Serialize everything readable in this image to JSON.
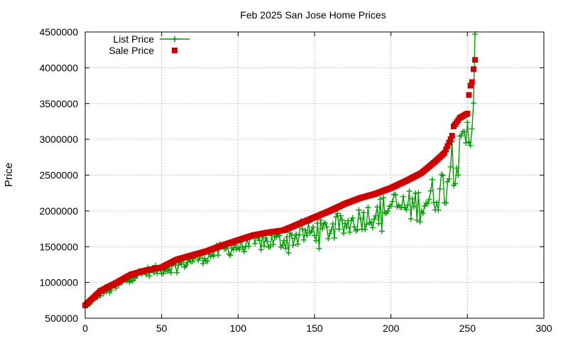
{
  "chart_data": {
    "type": "line",
    "title": "Feb 2025 San Jose Home Prices",
    "xlabel": "",
    "ylabel": "Price",
    "xlim": [
      0,
      300
    ],
    "ylim": [
      500000,
      4500000
    ],
    "xticks": [
      0,
      50,
      100,
      150,
      200,
      250,
      300
    ],
    "yticks": [
      500000,
      1000000,
      1500000,
      2000000,
      2500000,
      3000000,
      3500000,
      4000000,
      4500000
    ],
    "grid": true,
    "legend_position": "top-left",
    "series": [
      {
        "name": "List Price",
        "style": "line-with-plus-markers",
        "color": "#009e00",
        "anchors": [
          [
            0,
            690000
          ],
          [
            5,
            770000
          ],
          [
            10,
            860000
          ],
          [
            20,
            930000
          ],
          [
            30,
            1080000
          ],
          [
            40,
            1150000
          ],
          [
            50,
            1180000
          ],
          [
            60,
            1230000
          ],
          [
            70,
            1320000
          ],
          [
            80,
            1370000
          ],
          [
            90,
            1460000
          ],
          [
            100,
            1500000
          ],
          [
            110,
            1550000
          ],
          [
            120,
            1570000
          ],
          [
            130,
            1590000
          ],
          [
            140,
            1650000
          ],
          [
            150,
            1720000
          ],
          [
            160,
            1730000
          ],
          [
            170,
            1790000
          ],
          [
            180,
            1900000
          ],
          [
            190,
            1960000
          ],
          [
            200,
            2080000
          ],
          [
            210,
            2050000
          ],
          [
            220,
            2100000
          ],
          [
            230,
            2250000
          ],
          [
            235,
            2380000
          ],
          [
            240,
            2620000
          ],
          [
            245,
            2750000
          ],
          [
            250,
            3050000
          ],
          [
            253,
            3150000
          ],
          [
            255,
            4470000
          ]
        ],
        "noise_amplitude": [
          [
            0,
            60000
          ],
          [
            50,
            70000
          ],
          [
            100,
            110000
          ],
          [
            150,
            150000
          ],
          [
            200,
            200000
          ],
          [
            230,
            280000
          ],
          [
            250,
            320000
          ]
        ]
      },
      {
        "name": "Sale Price",
        "style": "square-markers",
        "color": "#cc0000",
        "anchors": [
          [
            0,
            680000
          ],
          [
            5,
            780000
          ],
          [
            10,
            880000
          ],
          [
            20,
            990000
          ],
          [
            30,
            1110000
          ],
          [
            40,
            1170000
          ],
          [
            50,
            1210000
          ],
          [
            60,
            1320000
          ],
          [
            70,
            1380000
          ],
          [
            80,
            1440000
          ],
          [
            90,
            1520000
          ],
          [
            100,
            1590000
          ],
          [
            110,
            1660000
          ],
          [
            120,
            1700000
          ],
          [
            130,
            1730000
          ],
          [
            140,
            1820000
          ],
          [
            150,
            1910000
          ],
          [
            160,
            2000000
          ],
          [
            170,
            2100000
          ],
          [
            180,
            2180000
          ],
          [
            190,
            2240000
          ],
          [
            200,
            2320000
          ],
          [
            210,
            2420000
          ],
          [
            220,
            2530000
          ],
          [
            230,
            2710000
          ],
          [
            235,
            2810000
          ],
          [
            240,
            3050000
          ],
          [
            241,
            3180000
          ],
          [
            245,
            3300000
          ],
          [
            250,
            3360000
          ],
          [
            251,
            3620000
          ],
          [
            252,
            3750000
          ],
          [
            253,
            3800000
          ],
          [
            254,
            3980000
          ],
          [
            255,
            4110000
          ]
        ],
        "count": 256
      }
    ]
  }
}
